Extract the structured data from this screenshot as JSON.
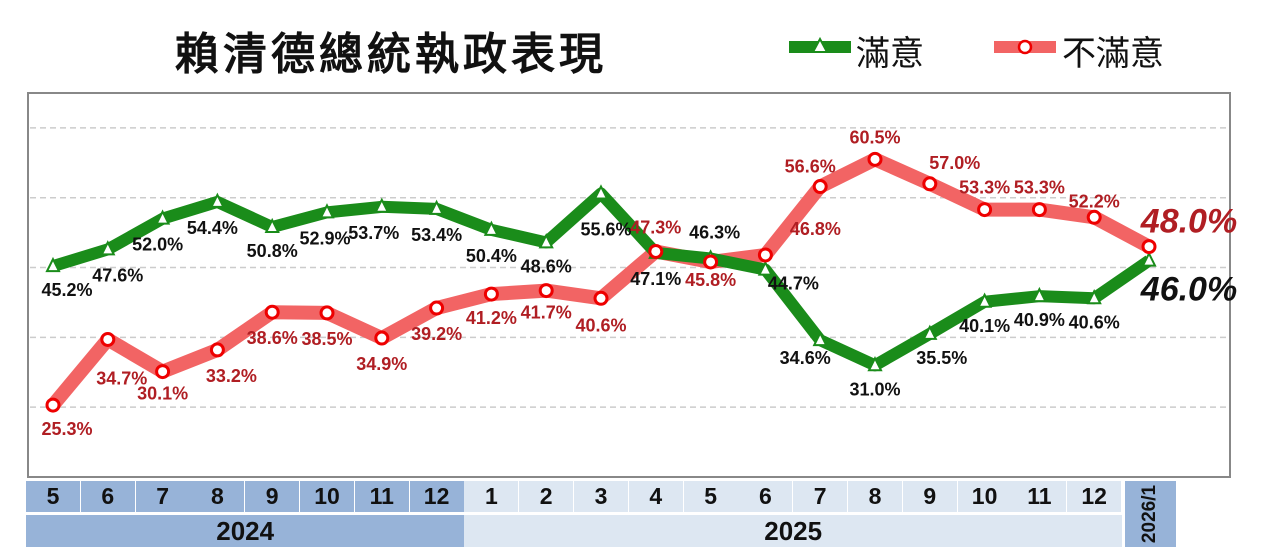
{
  "chart_data": {
    "type": "line",
    "title": "賴清德總統執政表現",
    "x": [
      "5",
      "6",
      "7",
      "8",
      "9",
      "10",
      "11",
      "12",
      "1",
      "2",
      "3",
      "4",
      "5",
      "6",
      "7",
      "8",
      "9",
      "10",
      "11",
      "12",
      "2026/1"
    ],
    "year_groups": [
      {
        "label": "2024",
        "months": 8
      },
      {
        "label": "2025",
        "months": 12
      },
      {
        "label": "2026/1",
        "months": 1
      }
    ],
    "series": [
      {
        "name": "滿意",
        "color": "#1a8c1a",
        "marker": "triangle",
        "values": [
          45.2,
          47.6,
          52.0,
          54.4,
          50.8,
          52.9,
          53.7,
          53.4,
          50.4,
          48.6,
          55.6,
          47.1,
          46.3,
          44.7,
          34.6,
          31.0,
          35.5,
          40.1,
          40.9,
          40.6,
          46.0
        ],
        "labels": [
          "45.2%",
          "47.6%",
          "52.0%",
          "54.4%",
          "50.8%",
          "52.9%",
          "53.7%",
          "53.4%",
          "50.4%",
          "48.6%",
          "55.6%",
          "47.1%",
          "46.3%",
          "44.7%",
          "34.6%",
          "31.0%",
          "35.5%",
          "40.1%",
          "40.9%",
          "40.6%",
          "46.0%"
        ]
      },
      {
        "name": "不滿意",
        "color": "#f26464",
        "marker": "circle",
        "values": [
          25.3,
          34.7,
          30.1,
          33.2,
          38.6,
          38.5,
          34.9,
          39.2,
          41.2,
          41.7,
          40.6,
          47.3,
          45.8,
          46.8,
          56.6,
          60.5,
          57.0,
          53.3,
          53.3,
          52.2,
          48.0
        ],
        "labels": [
          "25.3%",
          "34.7%",
          "30.1%",
          "33.2%",
          "38.6%",
          "38.5%",
          "34.9%",
          "39.2%",
          "41.2%",
          "41.7%",
          "40.6%",
          "47.3%",
          "45.8%",
          "46.8%",
          "56.6%",
          "60.5%",
          "57.0%",
          "53.3%",
          "53.3%",
          "52.2%",
          "48.0%"
        ]
      }
    ],
    "ylim": [
      15,
      70
    ],
    "grid": true,
    "legend": "top-right"
  }
}
